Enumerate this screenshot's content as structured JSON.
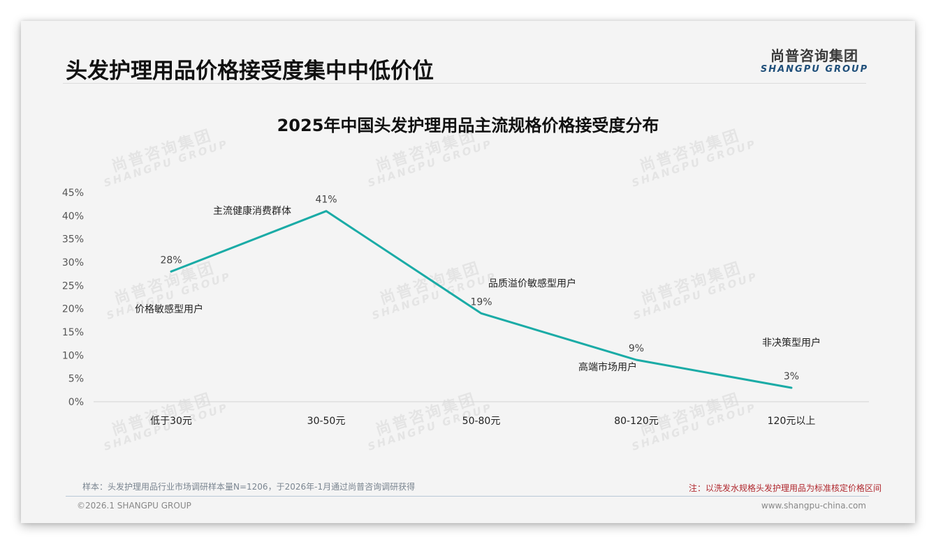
{
  "header": {
    "title": "头发护理用品价格接受度集中中低价位",
    "logo_cn": "尚普咨询集团",
    "logo_en": "SHANGPU GROUP"
  },
  "watermark": {
    "cn": "尚普咨询集团",
    "en": "SHANGPU GROUP"
  },
  "colors": {
    "line": "#1aaba6",
    "title": "#111111",
    "note_red": "#b0282e",
    "logo_blue": "#1f4f7a"
  },
  "chart_data": {
    "type": "line",
    "title": "2025年中国头发护理用品主流规格价格接受度分布",
    "xlabel": "",
    "ylabel": "",
    "categories": [
      "低于30元",
      "30-50元",
      "50-80元",
      "80-120元",
      "120元以上"
    ],
    "values": [
      28,
      41,
      19,
      9,
      3
    ],
    "value_labels": [
      "28%",
      "41%",
      "19%",
      "9%",
      "3%"
    ],
    "annotations": [
      "价格敏感型用户",
      "主流健康消费群体",
      "品质溢价敏感型用户",
      "高端市场用户",
      "非决策型用户"
    ],
    "y_ticks": [
      "0%",
      "5%",
      "10%",
      "15%",
      "20%",
      "25%",
      "30%",
      "35%",
      "40%",
      "45%"
    ],
    "ylim": [
      0,
      45
    ],
    "grid": false,
    "legend": "none"
  },
  "footer": {
    "sample_note": "样本：头发护理用品行业市场调研样本量N=1206，于2026年-1月通过尚普咨询调研获得",
    "price_note": "注：以洗发水规格头发护理用品为标准核定价格区间",
    "copyright": "©2026.1 SHANGPU GROUP",
    "website": "www.shangpu-china.com"
  }
}
